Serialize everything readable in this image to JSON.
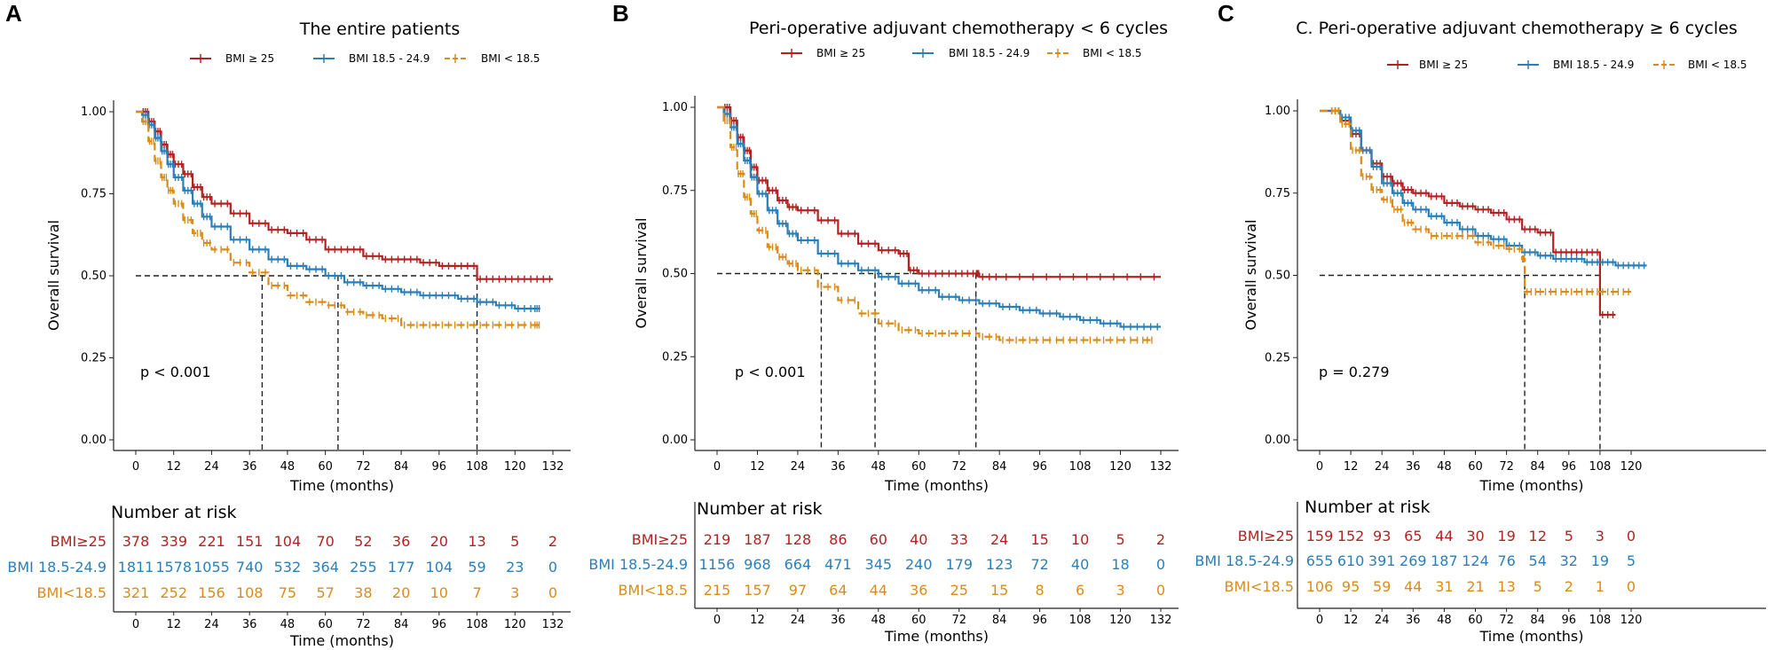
{
  "colors": {
    "bmi_high": "#B22222",
    "bmi_normal": "#2A7FB8",
    "bmi_low": "#D98C1A",
    "ref": "#222222"
  },
  "legend": {
    "high": "BMI ≥ 25",
    "normal": "BMI 18.5 - 24.9",
    "low": "BMI < 18.5"
  },
  "chart_data": [
    {
      "panel": "A",
      "type": "line",
      "title": "The entire patients",
      "xlabel": "Time (months)",
      "ylabel": "Overall survival",
      "xlim": [
        0,
        132
      ],
      "ylim": [
        0,
        1
      ],
      "xticks": [
        "0",
        "12",
        "24",
        "36",
        "48",
        "60",
        "72",
        "84",
        "96",
        "108",
        "120",
        "132"
      ],
      "yticks": [
        "0.00",
        "0.25",
        "0.50",
        "0.75",
        "1.00"
      ],
      "p_value": "p < 0.001",
      "median_lines": [
        40,
        64,
        108
      ],
      "series": [
        {
          "name": "BMI ≥ 25",
          "color_key": "bmi_high",
          "dashed": false,
          "x": [
            0,
            2,
            4,
            6,
            8,
            10,
            12,
            15,
            18,
            21,
            24,
            30,
            36,
            42,
            48,
            54,
            60,
            66,
            72,
            78,
            84,
            90,
            96,
            102,
            108,
            114,
            120,
            126,
            132
          ],
          "y": [
            1.0,
            1.0,
            0.97,
            0.94,
            0.9,
            0.87,
            0.84,
            0.81,
            0.77,
            0.74,
            0.72,
            0.69,
            0.66,
            0.64,
            0.63,
            0.61,
            0.58,
            0.58,
            0.56,
            0.55,
            0.55,
            0.54,
            0.53,
            0.53,
            0.49,
            0.49,
            0.49,
            0.49,
            0.49
          ]
        },
        {
          "name": "BMI 18.5 - 24.9",
          "color_key": "bmi_normal",
          "dashed": false,
          "x": [
            0,
            2,
            4,
            6,
            8,
            10,
            12,
            15,
            18,
            21,
            24,
            30,
            36,
            42,
            48,
            54,
            60,
            66,
            72,
            78,
            84,
            90,
            96,
            102,
            108,
            114,
            120,
            126,
            128
          ],
          "y": [
            1.0,
            0.99,
            0.96,
            0.92,
            0.88,
            0.84,
            0.8,
            0.76,
            0.72,
            0.68,
            0.65,
            0.61,
            0.58,
            0.55,
            0.53,
            0.52,
            0.5,
            0.48,
            0.47,
            0.46,
            0.45,
            0.44,
            0.44,
            0.43,
            0.42,
            0.41,
            0.4,
            0.4,
            0.4
          ]
        },
        {
          "name": "BMI < 18.5",
          "color_key": "bmi_low",
          "dashed": true,
          "x": [
            0,
            2,
            4,
            6,
            8,
            10,
            12,
            15,
            18,
            21,
            24,
            30,
            36,
            42,
            48,
            54,
            60,
            66,
            72,
            78,
            84,
            90,
            96,
            102,
            108,
            114,
            120,
            126,
            128
          ],
          "y": [
            1.0,
            0.97,
            0.91,
            0.85,
            0.8,
            0.76,
            0.72,
            0.67,
            0.63,
            0.6,
            0.58,
            0.54,
            0.51,
            0.47,
            0.44,
            0.42,
            0.41,
            0.39,
            0.38,
            0.37,
            0.35,
            0.35,
            0.35,
            0.35,
            0.35,
            0.35,
            0.35,
            0.35,
            0.35
          ]
        }
      ],
      "risk_table": {
        "title": "Number at risk",
        "xlabel": "Time (months)",
        "rows": [
          {
            "label": "BMI≥25",
            "color_key": "bmi_high",
            "values": [
              "378",
              "339",
              "221",
              "151",
              "104",
              "70",
              "52",
              "36",
              "20",
              "13",
              "5",
              "2"
            ]
          },
          {
            "label": "BMI 18.5-24.9",
            "color_key": "bmi_normal",
            "values": [
              "1811",
              "1578",
              "1055",
              "740",
              "532",
              "364",
              "255",
              "177",
              "104",
              "59",
              "23",
              "0"
            ]
          },
          {
            "label": "BMI<18.5",
            "color_key": "bmi_low",
            "values": [
              "321",
              "252",
              "156",
              "108",
              "75",
              "57",
              "38",
              "20",
              "10",
              "7",
              "3",
              "0"
            ]
          }
        ]
      }
    },
    {
      "panel": "B",
      "type": "line",
      "title": "Peri-operative adjuvant chemotherapy < 6 cycles",
      "xlabel": "Time (months)",
      "ylabel": "Overall survival",
      "xlim": [
        0,
        132
      ],
      "ylim": [
        0,
        1
      ],
      "xticks": [
        "0",
        "12",
        "24",
        "36",
        "48",
        "60",
        "72",
        "84",
        "96",
        "108",
        "120",
        "132"
      ],
      "yticks": [
        "0.00",
        "0.25",
        "0.50",
        "0.75",
        "1.00"
      ],
      "p_value": "p < 0.001",
      "median_lines": [
        31,
        47,
        77
      ],
      "series": [
        {
          "name": "BMI ≥ 25",
          "color_key": "bmi_high",
          "dashed": false,
          "x": [
            0,
            2,
            4,
            6,
            8,
            10,
            12,
            15,
            18,
            21,
            24,
            30,
            36,
            42,
            48,
            54,
            57,
            60,
            66,
            72,
            77,
            78,
            84,
            96,
            108,
            120,
            132
          ],
          "y": [
            1.0,
            1.0,
            0.96,
            0.91,
            0.87,
            0.82,
            0.78,
            0.75,
            0.72,
            0.7,
            0.69,
            0.66,
            0.62,
            0.59,
            0.57,
            0.56,
            0.51,
            0.5,
            0.5,
            0.5,
            0.5,
            0.49,
            0.49,
            0.49,
            0.49,
            0.49,
            0.49
          ]
        },
        {
          "name": "BMI 18.5 - 24.9",
          "color_key": "bmi_normal",
          "dashed": false,
          "x": [
            0,
            2,
            4,
            6,
            8,
            10,
            12,
            15,
            18,
            21,
            24,
            30,
            36,
            42,
            48,
            54,
            60,
            66,
            72,
            78,
            84,
            90,
            96,
            102,
            108,
            114,
            120,
            126,
            132
          ],
          "y": [
            1.0,
            0.98,
            0.94,
            0.89,
            0.84,
            0.79,
            0.74,
            0.69,
            0.65,
            0.62,
            0.6,
            0.56,
            0.53,
            0.51,
            0.49,
            0.47,
            0.45,
            0.43,
            0.42,
            0.41,
            0.4,
            0.39,
            0.38,
            0.37,
            0.36,
            0.35,
            0.34,
            0.34,
            0.34
          ]
        },
        {
          "name": "BMI < 18.5",
          "color_key": "bmi_low",
          "dashed": true,
          "x": [
            0,
            2,
            4,
            6,
            8,
            10,
            12,
            15,
            18,
            21,
            24,
            30,
            36,
            42,
            48,
            54,
            60,
            66,
            72,
            78,
            84,
            90,
            96,
            102,
            108,
            114,
            120,
            126,
            130
          ],
          "y": [
            1.0,
            0.96,
            0.88,
            0.8,
            0.73,
            0.68,
            0.63,
            0.58,
            0.55,
            0.53,
            0.51,
            0.46,
            0.42,
            0.38,
            0.35,
            0.33,
            0.32,
            0.32,
            0.32,
            0.31,
            0.3,
            0.3,
            0.3,
            0.3,
            0.3,
            0.3,
            0.3,
            0.3,
            0.3
          ]
        }
      ],
      "risk_table": {
        "title": "Number at risk",
        "xlabel": "Time (months)",
        "rows": [
          {
            "label": "BMI≥25",
            "color_key": "bmi_high",
            "values": [
              "219",
              "187",
              "128",
              "86",
              "60",
              "40",
              "33",
              "24",
              "15",
              "10",
              "5",
              "2"
            ]
          },
          {
            "label": "BMI 18.5-24.9",
            "color_key": "bmi_normal",
            "values": [
              "1156",
              "968",
              "664",
              "471",
              "345",
              "240",
              "179",
              "123",
              "72",
              "40",
              "18",
              "0"
            ]
          },
          {
            "label": "BMI<18.5",
            "color_key": "bmi_low",
            "values": [
              "215",
              "157",
              "97",
              "64",
              "44",
              "36",
              "25",
              "15",
              "8",
              "6",
              "3",
              "0"
            ]
          }
        ]
      }
    },
    {
      "panel": "C",
      "type": "line",
      "title": "C. Peri-operative adjuvant chemotherapy ≥ 6 cycles",
      "xlabel": "Time (months)",
      "ylabel": "Overall survival",
      "xlim": [
        0,
        120
      ],
      "ylim": [
        0,
        1
      ],
      "xticks": [
        "0",
        "12",
        "24",
        "36",
        "48",
        "60",
        "72",
        "84",
        "96",
        "108",
        "120"
      ],
      "yticks": [
        "0.00",
        "0.25",
        "0.50",
        "0.75",
        "1.00"
      ],
      "p_value": "p = 0.279",
      "median_lines": [
        79,
        108
      ],
      "series": [
        {
          "name": "BMI ≥ 25",
          "color_key": "bmi_high",
          "dashed": false,
          "x": [
            0,
            4,
            8,
            12,
            16,
            20,
            24,
            28,
            32,
            36,
            42,
            48,
            54,
            60,
            66,
            72,
            78,
            84,
            90,
            96,
            102,
            108,
            114
          ],
          "y": [
            1.0,
            1.0,
            0.97,
            0.93,
            0.88,
            0.84,
            0.8,
            0.78,
            0.76,
            0.75,
            0.74,
            0.72,
            0.71,
            0.7,
            0.69,
            0.67,
            0.64,
            0.63,
            0.57,
            0.57,
            0.57,
            0.38,
            0.38
          ]
        },
        {
          "name": "BMI 18.5 - 24.9",
          "color_key": "bmi_normal",
          "dashed": false,
          "x": [
            0,
            4,
            8,
            12,
            16,
            20,
            24,
            28,
            32,
            36,
            42,
            48,
            54,
            60,
            66,
            72,
            78,
            84,
            90,
            96,
            102,
            108,
            114,
            120,
            126
          ],
          "y": [
            1.0,
            1.0,
            0.98,
            0.94,
            0.88,
            0.83,
            0.78,
            0.75,
            0.72,
            0.7,
            0.68,
            0.66,
            0.64,
            0.62,
            0.61,
            0.59,
            0.57,
            0.56,
            0.55,
            0.55,
            0.54,
            0.54,
            0.53,
            0.53,
            0.53
          ]
        },
        {
          "name": "BMI < 18.5",
          "color_key": "bmi_low",
          "dashed": true,
          "x": [
            0,
            4,
            8,
            12,
            16,
            20,
            24,
            28,
            32,
            36,
            42,
            48,
            54,
            60,
            66,
            72,
            78,
            79,
            84,
            90,
            96,
            102,
            108,
            114,
            120
          ],
          "y": [
            1.0,
            1.0,
            0.96,
            0.88,
            0.8,
            0.76,
            0.73,
            0.7,
            0.66,
            0.64,
            0.62,
            0.62,
            0.62,
            0.6,
            0.59,
            0.58,
            0.55,
            0.45,
            0.45,
            0.45,
            0.45,
            0.45,
            0.45,
            0.45,
            0.45
          ]
        }
      ],
      "risk_table": {
        "title": "Number at risk",
        "xlabel": "Time (months)",
        "rows": [
          {
            "label": "BMI≥25",
            "color_key": "bmi_high",
            "values": [
              "159",
              "152",
              "93",
              "65",
              "44",
              "30",
              "19",
              "12",
              "5",
              "3",
              "0"
            ]
          },
          {
            "label": "BMI 18.5-24.9",
            "color_key": "bmi_normal",
            "values": [
              "655",
              "610",
              "391",
              "269",
              "187",
              "124",
              "76",
              "54",
              "32",
              "19",
              "5"
            ]
          },
          {
            "label": "BMI<18.5",
            "color_key": "bmi_low",
            "values": [
              "106",
              "95",
              "59",
              "44",
              "31",
              "21",
              "13",
              "5",
              "2",
              "1",
              "0"
            ]
          }
        ]
      }
    }
  ]
}
